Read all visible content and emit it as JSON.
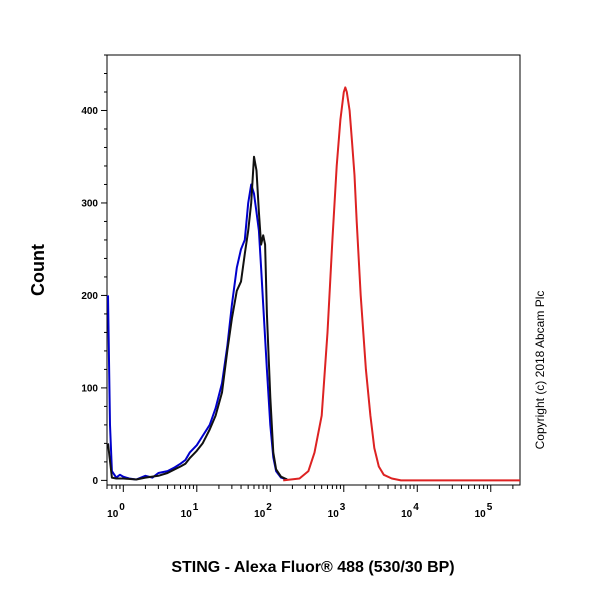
{
  "chart_data": {
    "type": "line",
    "title": "",
    "xlabel": "STING - Alexa Fluor® 488 (530/30 BP)",
    "ylabel": "Count",
    "x_scale": "log",
    "xlim": [
      0.6,
      250000
    ],
    "ylim": [
      -5,
      460
    ],
    "x_ticks": [
      {
        "value": 1,
        "base": "10",
        "exp": "0"
      },
      {
        "value": 10,
        "base": "10",
        "exp": "1"
      },
      {
        "value": 100,
        "base": "10",
        "exp": "2"
      },
      {
        "value": 1000,
        "base": "10",
        "exp": "3"
      },
      {
        "value": 10000,
        "base": "10",
        "exp": "4"
      },
      {
        "value": 100000,
        "base": "10",
        "exp": "5"
      }
    ],
    "y_ticks": [
      0,
      100,
      200,
      300,
      400
    ],
    "grid": false,
    "annotation": "Copyright (c) 2018 Abcam Plc",
    "series": [
      {
        "color": "#0000cc",
        "points": [
          [
            0.62,
            200
          ],
          [
            0.66,
            60
          ],
          [
            0.7,
            10
          ],
          [
            0.8,
            3
          ],
          [
            0.9,
            6
          ],
          [
            1.0,
            4
          ],
          [
            1.2,
            2
          ],
          [
            1.5,
            1
          ],
          [
            2.0,
            5
          ],
          [
            2.5,
            3
          ],
          [
            3,
            8
          ],
          [
            4,
            10
          ],
          [
            5,
            14
          ],
          [
            6,
            18
          ],
          [
            7,
            22
          ],
          [
            8,
            30
          ],
          [
            10,
            38
          ],
          [
            12,
            48
          ],
          [
            15,
            60
          ],
          [
            18,
            78
          ],
          [
            22,
            105
          ],
          [
            26,
            145
          ],
          [
            30,
            190
          ],
          [
            35,
            230
          ],
          [
            40,
            250
          ],
          [
            45,
            260
          ],
          [
            50,
            300
          ],
          [
            55,
            320
          ],
          [
            60,
            310
          ],
          [
            65,
            290
          ],
          [
            70,
            270
          ],
          [
            75,
            230
          ],
          [
            80,
            190
          ],
          [
            90,
            120
          ],
          [
            100,
            60
          ],
          [
            110,
            25
          ],
          [
            120,
            10
          ],
          [
            140,
            3
          ],
          [
            170,
            1
          ]
        ]
      },
      {
        "color": "#111111",
        "points": [
          [
            0.62,
            40
          ],
          [
            0.7,
            3
          ],
          [
            0.8,
            2
          ],
          [
            1.0,
            2
          ],
          [
            1.5,
            1
          ],
          [
            2.0,
            3
          ],
          [
            3,
            5
          ],
          [
            4,
            8
          ],
          [
            5,
            12
          ],
          [
            6,
            15
          ],
          [
            7,
            18
          ],
          [
            8,
            24
          ],
          [
            10,
            32
          ],
          [
            12,
            40
          ],
          [
            15,
            55
          ],
          [
            18,
            70
          ],
          [
            22,
            95
          ],
          [
            26,
            140
          ],
          [
            30,
            175
          ],
          [
            35,
            205
          ],
          [
            40,
            215
          ],
          [
            45,
            245
          ],
          [
            50,
            270
          ],
          [
            55,
            300
          ],
          [
            60,
            350
          ],
          [
            65,
            335
          ],
          [
            70,
            290
          ],
          [
            75,
            255
          ],
          [
            80,
            265
          ],
          [
            85,
            255
          ],
          [
            90,
            180
          ],
          [
            100,
            90
          ],
          [
            110,
            30
          ],
          [
            120,
            12
          ],
          [
            140,
            4
          ],
          [
            170,
            1
          ]
        ]
      },
      {
        "color": "#dd2222",
        "points": [
          [
            150,
            0
          ],
          [
            250,
            2
          ],
          [
            330,
            10
          ],
          [
            400,
            30
          ],
          [
            500,
            70
          ],
          [
            600,
            160
          ],
          [
            700,
            260
          ],
          [
            800,
            340
          ],
          [
            900,
            390
          ],
          [
            1000,
            420
          ],
          [
            1050,
            425
          ],
          [
            1100,
            420
          ],
          [
            1200,
            400
          ],
          [
            1300,
            365
          ],
          [
            1400,
            330
          ],
          [
            1500,
            280
          ],
          [
            1700,
            200
          ],
          [
            2000,
            120
          ],
          [
            2300,
            70
          ],
          [
            2600,
            35
          ],
          [
            3000,
            15
          ],
          [
            3500,
            6
          ],
          [
            4500,
            2
          ],
          [
            6000,
            0
          ],
          [
            250000,
            0
          ]
        ]
      }
    ]
  }
}
